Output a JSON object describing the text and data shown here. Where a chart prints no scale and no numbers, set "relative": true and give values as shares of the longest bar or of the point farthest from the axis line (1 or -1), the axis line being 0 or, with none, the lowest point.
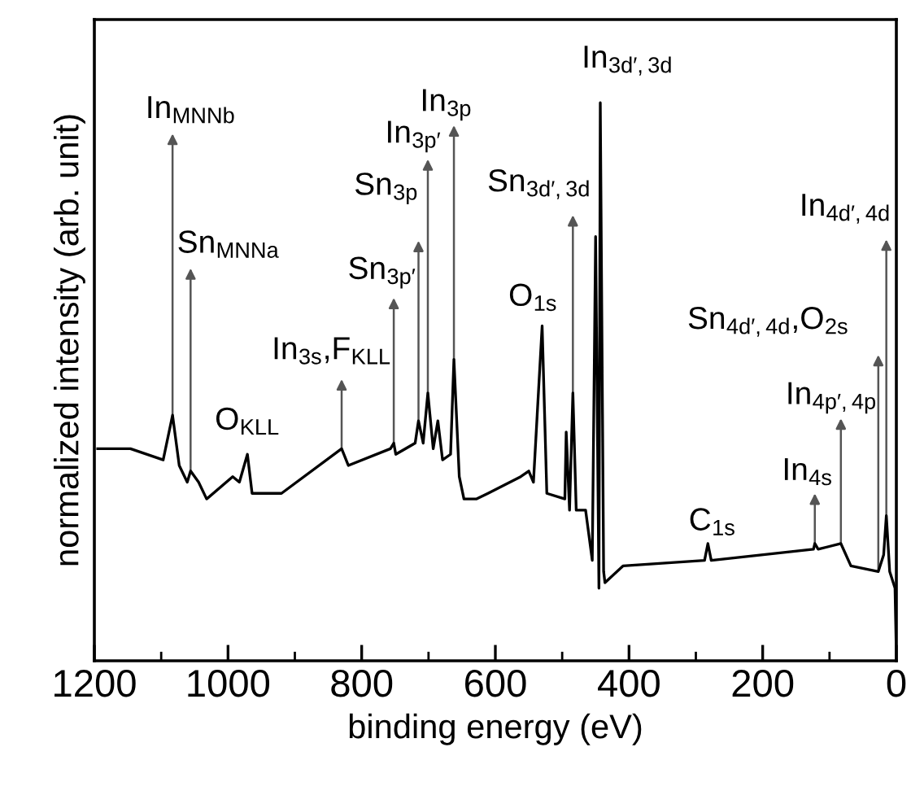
{
  "chart_data": {
    "type": "line",
    "relative": true,
    "xlabel": "binding energy (eV)",
    "ylabel": "normalized intensity (arb. unit)",
    "xlim": [
      1200,
      0
    ],
    "xticks": [
      1200,
      1000,
      800,
      600,
      400,
      200,
      0
    ],
    "tick_labels": "x",
    "grid": false,
    "legend": false,
    "marker": "none",
    "line_style": "solid",
    "series": [
      {
        "color": "#000000",
        "x": [
          1195,
          1146,
          1097,
          1083,
          1073,
          1061,
          1056,
          1044,
          1032,
          993,
          983,
          971,
          964,
          920,
          830,
          820,
          757,
          752,
          749,
          720,
          715,
          708,
          701,
          693,
          686,
          679,
          667,
          662,
          654,
          647,
          628,
          611,
          562,
          550,
          543,
          530,
          523,
          496,
          494,
          489,
          484,
          479,
          465,
          455,
          450,
          445,
          443,
          438,
          436,
          409,
          287,
          282,
          277,
          124,
          122,
          117,
          83,
          68,
          27,
          19,
          15,
          10,
          2,
          0
        ],
        "values": [
          0.38,
          0.38,
          0.36,
          0.44,
          0.35,
          0.32,
          0.34,
          0.32,
          0.29,
          0.33,
          0.32,
          0.37,
          0.3,
          0.3,
          0.38,
          0.35,
          0.38,
          0.39,
          0.37,
          0.39,
          0.43,
          0.39,
          0.48,
          0.38,
          0.43,
          0.36,
          0.37,
          0.54,
          0.33,
          0.29,
          0.29,
          0.3,
          0.33,
          0.34,
          0.32,
          0.6,
          0.3,
          0.29,
          0.41,
          0.27,
          0.48,
          0.27,
          0.27,
          0.18,
          0.76,
          0.13,
          1.0,
          0.16,
          0.14,
          0.17,
          0.18,
          0.21,
          0.18,
          0.2,
          0.21,
          0.2,
          0.21,
          0.17,
          0.16,
          0.19,
          0.26,
          0.16,
          0.13,
          0.01
        ]
      }
    ],
    "annotations": [
      {
        "text": "In$_{MNNb}$",
        "x": 1083,
        "y": 0.44
      },
      {
        "text": "Sn$_{MNNa}$",
        "x": 1056,
        "y": 0.34
      },
      {
        "text": "O$_{KLL}$",
        "x": 971,
        "y": 0.37
      },
      {
        "text": "In$_{3s}$,F$_{KLL}$",
        "x": 830,
        "y": 0.38
      },
      {
        "text": "Sn$_{3p′}$",
        "x": 752,
        "y": 0.39
      },
      {
        "text": "Sn$_{3p}$",
        "x": 715,
        "y": 0.43
      },
      {
        "text": "In$_{3p′}$",
        "x": 701,
        "y": 0.48
      },
      {
        "text": "In$_{3p}$",
        "x": 662,
        "y": 0.54
      },
      {
        "text": "Sn$_{3d′,3d}$",
        "x": 484,
        "y": 0.48
      },
      {
        "text": "O$_{1s}$",
        "x": 530,
        "y": 0.6
      },
      {
        "text": "In$_{3d′,3d}$",
        "x": 443,
        "y": 1.0
      },
      {
        "text": "C$_{1s}$",
        "x": 282,
        "y": 0.21
      },
      {
        "text": "In$_{4s}$",
        "x": 122,
        "y": 0.21
      },
      {
        "text": "In$_{4p′,4p}$",
        "x": 83,
        "y": 0.21
      },
      {
        "text": "Sn$_{4d′,4d}$,O$_{2s}$",
        "x": 27,
        "y": 0.16
      },
      {
        "text": "In$_{4d′,4d}$",
        "x": 15,
        "y": 0.26
      }
    ]
  }
}
